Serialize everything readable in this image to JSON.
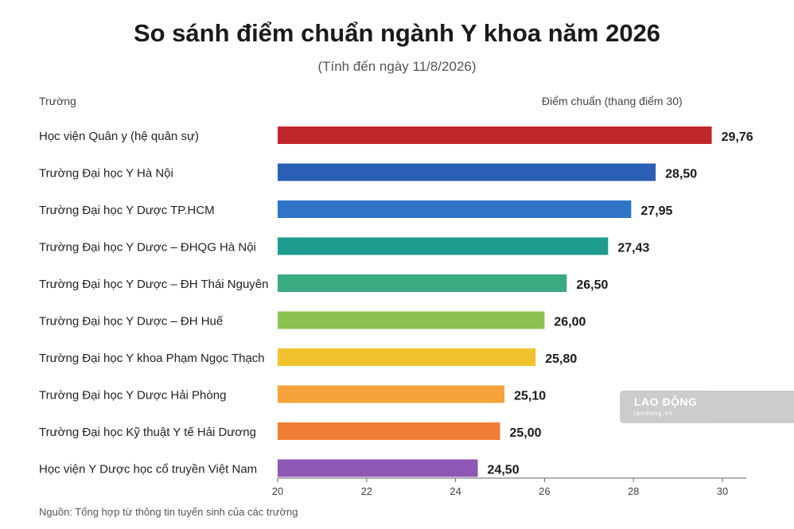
{
  "header": {
    "title": "So sánh điểm chuẩn ngành Y khoa năm 2026",
    "subtitle": "(Tính đến ngày 11/8/2026)",
    "left_col": "Trường",
    "right_col": "Điểm chuẩn (thang điểm 30)"
  },
  "source": "Nguồn: Tổng hợp từ thông tin tuyển sinh của các trường",
  "watermark": {
    "brand": "LAO ĐỘNG",
    "site": "laodong.vn"
  },
  "chart_data": {
    "type": "bar",
    "orientation": "horizontal",
    "title": "So sánh điểm chuẩn ngành Y khoa năm 2026",
    "subtitle": "(Tính đến ngày 11/8/2026)",
    "xlabel": "Điểm chuẩn (thang điểm 30)",
    "ylabel": "Trường",
    "xlim": [
      20,
      30
    ],
    "xticks": [
      "20",
      "22",
      "24",
      "26",
      "28",
      "30"
    ],
    "grid": false,
    "categories": [
      "Học viện Quân y (hệ quân sự)",
      "Trường Đại học Y Hà Nội",
      "Trường Đại học Y Dược TP.HCM",
      "Trường Đại học Y Dược – ĐHQG Hà Nội",
      "Trường Đại học Y Dược – ĐH Thái Nguyên",
      "Trường Đại học Y Dược – ĐH Huế",
      "Trường Đại học Y khoa Phạm Ngọc Thạch",
      "Trường Đại học Y Dược Hải Phòng",
      "Trường Đại học Kỹ thuật Y tế Hải Dương",
      "Học viện Y Dược học cổ truyền Việt Nam"
    ],
    "values": [
      29.76,
      28.5,
      27.95,
      27.43,
      26.5,
      26.0,
      25.8,
      25.1,
      25.0,
      24.5
    ],
    "value_labels": [
      "29,76",
      "28,50",
      "27,95",
      "27,43",
      "26,50",
      "26,00",
      "25,80",
      "25,10",
      "25,00",
      "24,50"
    ],
    "colors": [
      "#c0272d",
      "#2b5fb4",
      "#2f74c7",
      "#1e9b8f",
      "#3aaa80",
      "#8dc152",
      "#f2c12e",
      "#f5a33a",
      "#ef7d35",
      "#8e57b3"
    ]
  }
}
